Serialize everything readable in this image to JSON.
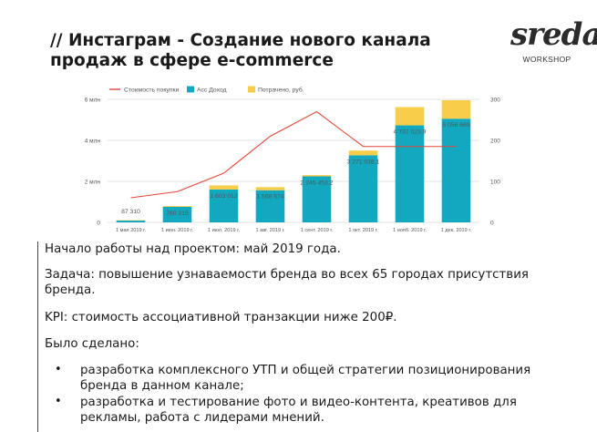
{
  "slide": {
    "title": "// Инстаграм - Создание нового канала продаж в сфере e-commerce"
  },
  "logo": {
    "main": "sreda",
    "sub": "WORKSHOP"
  },
  "chart_data": {
    "type": "bar",
    "categories": [
      "1 мая 2019 г.",
      "1 июн. 2019 г.",
      "1 июл. 2019 г.",
      "1 авг. 2019 г.",
      "1 сент. 2019 г.",
      "1 окт. 2019 г.",
      "1 нояб. 2019 г.",
      "1 дек. 2019 г."
    ],
    "series": [
      {
        "name": "Стоимость покупки",
        "kind": "line",
        "axis": "right",
        "color": "#e0473a",
        "values": [
          60,
          75,
          120,
          210,
          270,
          185,
          185,
          185
        ]
      },
      {
        "name": "Асс Доход",
        "kind": "bar",
        "axis": "left",
        "color": "#12a9c0",
        "values": [
          87310,
          760315,
          1603012,
          1568674,
          2245453,
          3271038,
          4732024,
          5056669
        ]
      },
      {
        "name": "Потрачено, руб.",
        "kind": "bar-stacked",
        "axis": "left",
        "color": "#f7cd4a",
        "values": [
          20000,
          40000,
          200000,
          150000,
          60000,
          230000,
          890000,
          900000
        ]
      }
    ],
    "data_labels": [
      "87 310",
      "760 315",
      "1 603 012",
      "1 568 674",
      "2 245 453,2",
      "3 271 038,1",
      "4 732 023,9",
      "5 056 669"
    ],
    "y_left": {
      "ticks": [
        "0",
        "2 млн",
        "4 млн",
        "6 млн"
      ],
      "min": 0,
      "max": 6000000
    },
    "y_right": {
      "ticks": [
        "0",
        "100",
        "200",
        "300"
      ],
      "min": 0,
      "max": 300
    },
    "legend_position": "top",
    "grid": true
  },
  "body": {
    "p1": "Начало работы над проектом: май 2019 года.",
    "p2_line1": "Задача: повышение узнаваемости бренда во всех 65 городах присутствия",
    "p2_line2": "бренда.",
    "p3": "KPI: стоимость ассоциативной транзакции ниже 200₽.",
    "p4": "Было сделано:",
    "bullet_char": "•",
    "b1_line1": "разработка комплексного УТП и общей стратегии позиционирования",
    "b1_line2": "бренда в данном канале;",
    "b2_line1": "разработка и тестирование фото и видео-контента, креативов для",
    "b2_line2": "рекламы, работа с лидерами мнений."
  }
}
